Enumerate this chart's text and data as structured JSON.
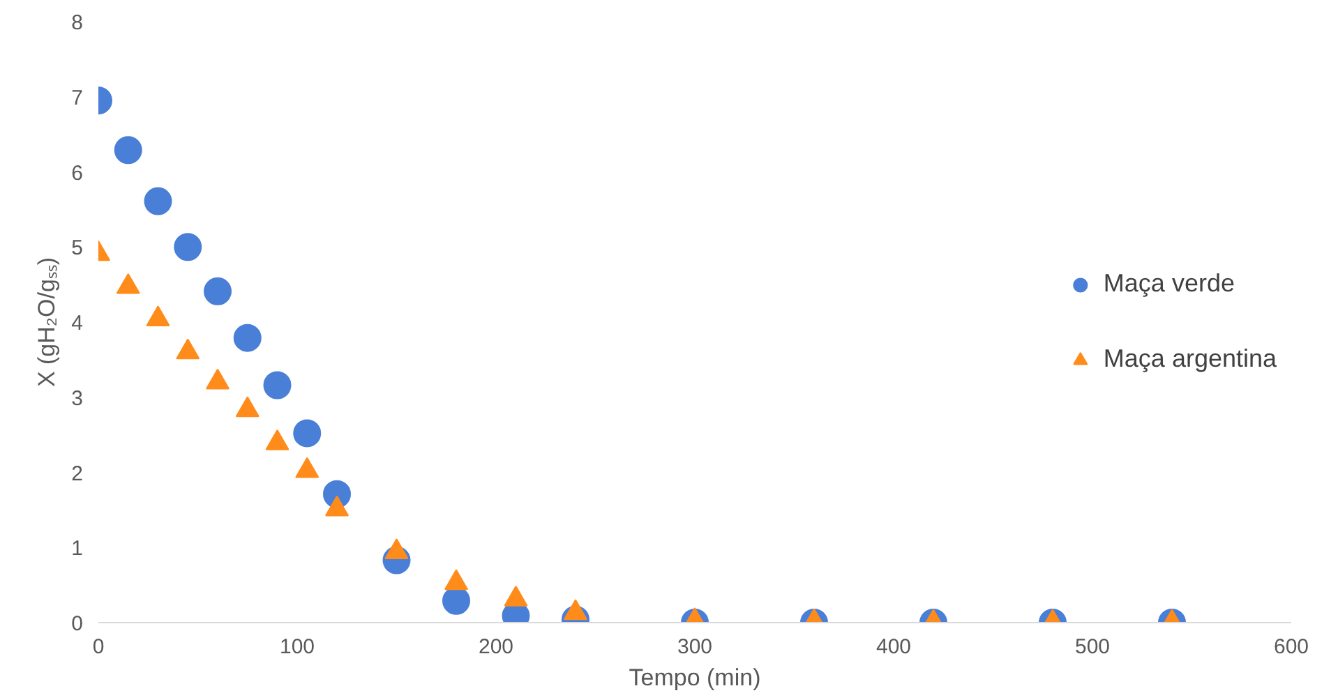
{
  "chart_data": {
    "type": "scatter",
    "xlabel": "Tempo (min)",
    "ylabel": "X (gH₂O/gₛₛ)",
    "xlim": [
      0,
      600
    ],
    "xticks": [
      0,
      100,
      200,
      300,
      400,
      500,
      600
    ],
    "ylim": [
      0,
      8
    ],
    "yticks": [
      0,
      1,
      2,
      3,
      4,
      5,
      6,
      7,
      8
    ],
    "x": [
      0,
      15,
      30,
      45,
      60,
      75,
      90,
      105,
      120,
      150,
      180,
      210,
      240,
      300,
      360,
      420,
      480,
      540
    ],
    "grid": false,
    "legend": "right",
    "series": [
      {
        "name": "Maça verde",
        "color": "#4a7fd8",
        "marker": "circle",
        "values": [
          6.95,
          6.29,
          5.61,
          5.0,
          4.41,
          3.79,
          3.16,
          2.52,
          1.71,
          0.83,
          0.29,
          0.09,
          0.04,
          0.0,
          0.0,
          0.0,
          0.0,
          0.0
        ]
      },
      {
        "name": "Maça argentina",
        "color": "#ff8c1a",
        "marker": "triangle",
        "values": [
          4.91,
          4.47,
          4.04,
          3.6,
          3.2,
          2.83,
          2.39,
          2.02,
          1.51,
          0.94,
          0.53,
          0.31,
          0.13,
          0.02,
          0.01,
          0.0,
          0.0,
          0.0
        ]
      }
    ]
  }
}
